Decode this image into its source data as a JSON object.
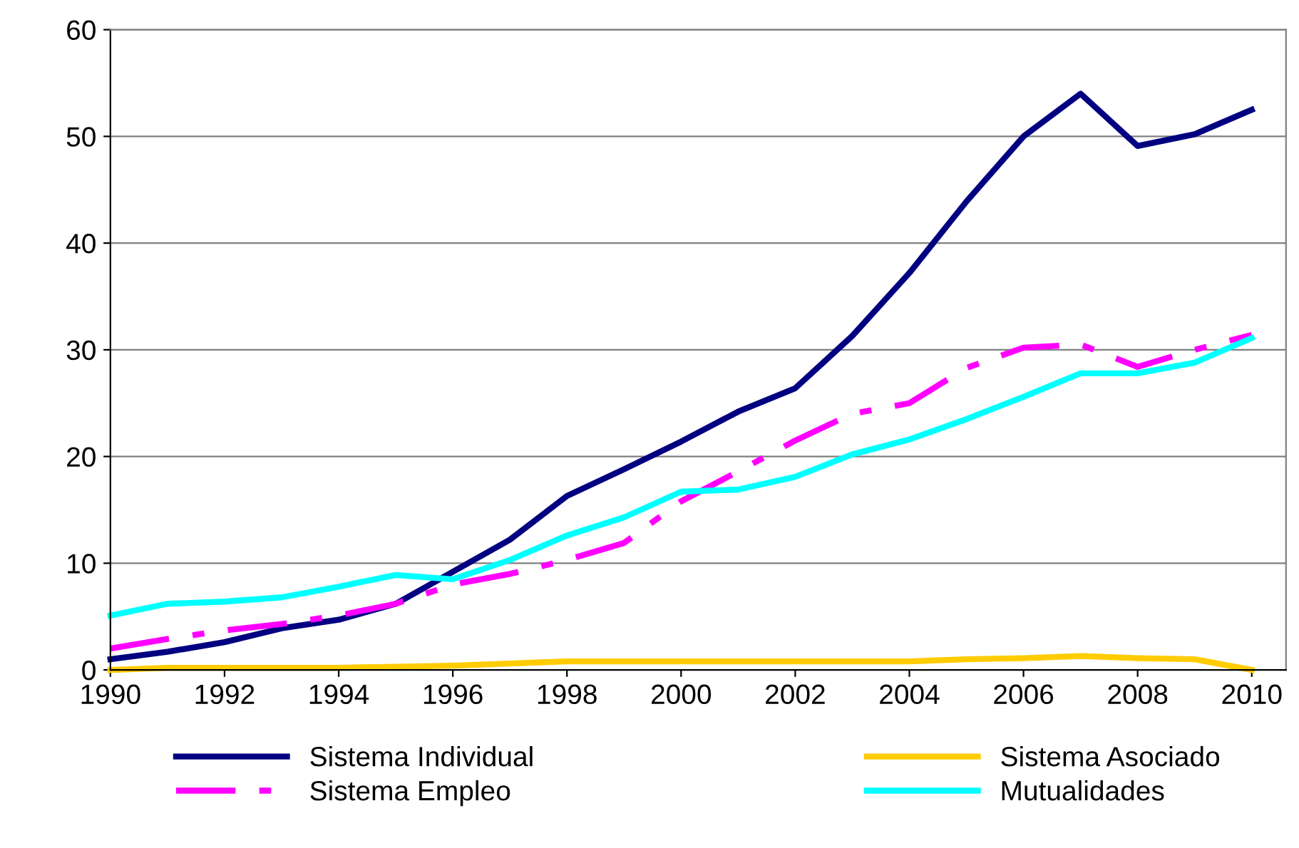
{
  "chart_data": {
    "type": "line",
    "x": [
      1990,
      1991,
      1992,
      1993,
      1994,
      1995,
      1996,
      1997,
      1998,
      1999,
      2000,
      2001,
      2002,
      2003,
      2004,
      2005,
      2006,
      2007,
      2008,
      2009,
      2010
    ],
    "series": [
      {
        "name": "Sistema Individual",
        "color": "#000080",
        "values": [
          1.0,
          1.7,
          2.6,
          3.9,
          4.7,
          6.2,
          9.2,
          12.2,
          16.3,
          18.8,
          21.4,
          24.2,
          26.4,
          31.3,
          37.2,
          43.9,
          50.0,
          54.0,
          49.1,
          50.2,
          52.5
        ]
      },
      {
        "name": "Sistema Empleo",
        "color": "#ff00ff",
        "line_style": "dashed",
        "values": [
          2.0,
          2.9,
          3.7,
          4.3,
          5.1,
          6.2,
          8.0,
          9.0,
          10.3,
          11.9,
          15.8,
          18.6,
          21.5,
          24.0,
          25.0,
          28.3,
          30.2,
          30.5,
          28.4,
          30.0,
          31.4
        ]
      },
      {
        "name": "Sistema Asociado",
        "color": "#ffcc00",
        "values": [
          0.0,
          0.2,
          0.2,
          0.2,
          0.2,
          0.3,
          0.4,
          0.6,
          0.8,
          0.8,
          0.8,
          0.8,
          0.8,
          0.8,
          0.8,
          1.0,
          1.1,
          1.3,
          1.1,
          1.0,
          0.0
        ]
      },
      {
        "name": "Mutualidades",
        "color": "#00ffff",
        "values": [
          5.1,
          6.2,
          6.4,
          6.8,
          7.8,
          8.9,
          8.5,
          10.3,
          12.6,
          14.3,
          16.7,
          16.9,
          18.1,
          20.2,
          21.6,
          23.5,
          25.6,
          27.8,
          27.8,
          28.8,
          31.1
        ]
      }
    ],
    "xlim": [
      1990,
      2010.6
    ],
    "xticks": [
      1990,
      1992,
      1994,
      1996,
      1998,
      2000,
      2002,
      2004,
      2006,
      2008,
      2010
    ],
    "ylim": [
      0,
      60
    ],
    "yticks": [
      0,
      10,
      20,
      30,
      40,
      50,
      60
    ],
    "grid": "y",
    "legend": "bottom",
    "line_style": "solid",
    "marker": "none"
  }
}
